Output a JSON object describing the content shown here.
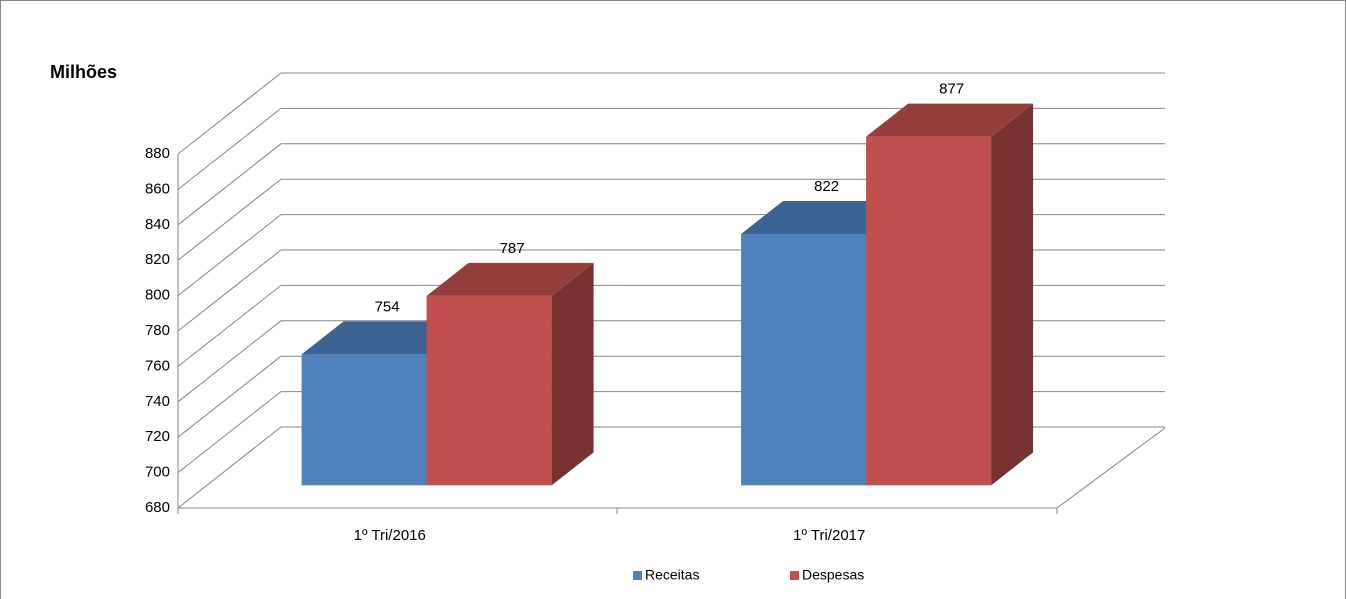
{
  "chart_data": {
    "type": "bar3d",
    "y_label": "Milhões",
    "categories": [
      "1º Tri/2016",
      "1º Tri/2017"
    ],
    "series": [
      {
        "name": "Receitas",
        "color": "#4f81bd",
        "values": [
          754,
          822
        ]
      },
      {
        "name": "Despesas",
        "color": "#c0504d",
        "values": [
          787,
          877
        ]
      }
    ],
    "ylim": [
      680,
      880
    ],
    "yticks": [
      680,
      700,
      720,
      740,
      760,
      780,
      800,
      820,
      840,
      860,
      880
    ],
    "grid": true,
    "legend": "bottom"
  }
}
